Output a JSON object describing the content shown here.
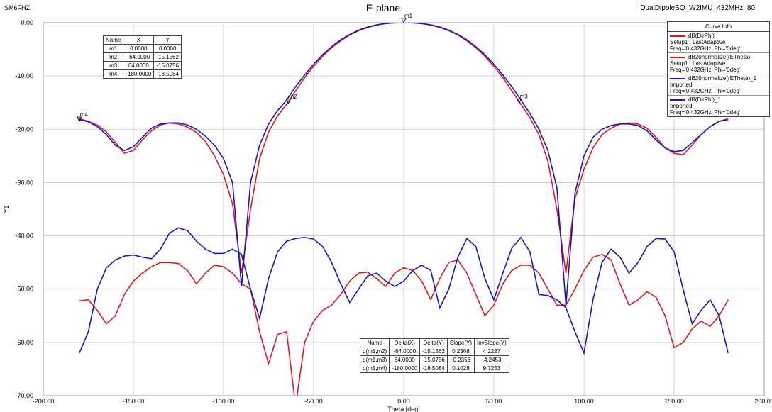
{
  "chart_data": {
    "type": "line",
    "title": "E-plane",
    "top_left_text": "SM6FHZ",
    "top_right_text": "DualDipoleSQ_W2IMU_432MHz_80",
    "x_label": "Theta [deg]",
    "y_label": "Y1",
    "xlim": [
      -200,
      200
    ],
    "ylim": [
      -70,
      0
    ],
    "xticks": [
      {
        "value": -200,
        "label": "-200.00"
      },
      {
        "value": -150,
        "label": "-150.00"
      },
      {
        "value": -100,
        "label": "-100.00"
      },
      {
        "value": -50,
        "label": "-50.00"
      },
      {
        "value": 0,
        "label": "0.00"
      },
      {
        "value": 50,
        "label": "50.00"
      },
      {
        "value": 100,
        "label": "100.00"
      },
      {
        "value": 150,
        "label": "150.00"
      },
      {
        "value": 200,
        "label": "200.00"
      }
    ],
    "yticks": [
      {
        "value": 0,
        "label": "0.00"
      },
      {
        "value": -10,
        "label": "-10.00"
      },
      {
        "value": -20,
        "label": "-20.00"
      },
      {
        "value": -30,
        "label": "-30.00"
      },
      {
        "value": -40,
        "label": "-40.00"
      },
      {
        "value": -50,
        "label": "-50.00"
      },
      {
        "value": -60,
        "label": "-60.00"
      },
      {
        "value": -70,
        "label": "-70.00"
      }
    ],
    "grid": true,
    "legend_title": "Curve Info",
    "legend_position": "top-right",
    "x": [
      -180,
      -175,
      -170,
      -165,
      -160,
      -155,
      -150,
      -145,
      -140,
      -135,
      -130,
      -125,
      -120,
      -115,
      -110,
      -105,
      -100,
      -95,
      -90,
      -85,
      -80,
      -75,
      -70,
      -65,
      -60,
      -55,
      -50,
      -45,
      -40,
      -35,
      -30,
      -25,
      -20,
      -15,
      -10,
      -5,
      0,
      5,
      10,
      15,
      20,
      25,
      30,
      35,
      40,
      45,
      50,
      55,
      60,
      65,
      70,
      75,
      80,
      85,
      90,
      95,
      100,
      105,
      110,
      115,
      120,
      125,
      130,
      135,
      140,
      145,
      150,
      155,
      160,
      165,
      170,
      175,
      180
    ],
    "series": [
      {
        "name": "dB(DirPhi)",
        "color": "#e8151b",
        "info": [
          "Setup1 : LastAdaptive",
          "Freq='0.432GHz' Phi='0deg'"
        ],
        "values": [
          -52.2,
          -52,
          -54,
          -56.5,
          -55,
          -51,
          -48.5,
          -47,
          -45.8,
          -45,
          -45,
          -45.2,
          -46.5,
          -49,
          -47,
          -45.5,
          -45.8,
          -47,
          -49,
          -50,
          -58,
          -64,
          -58.5,
          -58,
          -72,
          -60,
          -56,
          -54,
          -53,
          -51,
          -48.5,
          -47,
          -46.8,
          -48,
          -49.5,
          -47,
          -46,
          -46.5,
          -48.5,
          -52,
          -48,
          -45,
          -44.5,
          -47,
          -51,
          -55,
          -53,
          -49,
          -46.5,
          -45.5,
          -45.5,
          -47,
          -50,
          -53,
          -53,
          -50,
          -46.5,
          -44,
          -43.5,
          -44.5,
          -49,
          -53,
          -52,
          -50.5,
          -51.5,
          -55,
          -61,
          -60,
          -57.5,
          -56,
          -57,
          -55,
          -52
        ]
      },
      {
        "name": "dB20normalize(rETheta)",
        "color": "#e8151b",
        "info": [
          "Setup1 : LastAdaptive",
          "Freq='0.432GHz' Phi='0deg'"
        ],
        "values": [
          -18,
          -18.5,
          -19.2,
          -20.5,
          -22.5,
          -24.5,
          -24,
          -22,
          -20.3,
          -19.2,
          -18.8,
          -19,
          -19.6,
          -20.6,
          -22.3,
          -25,
          -28.5,
          -34,
          -47,
          -35,
          -25.5,
          -20.5,
          -17.5,
          -15.3,
          -12.8,
          -10.3,
          -8.2,
          -6.3,
          -4.7,
          -3.4,
          -2.3,
          -1.5,
          -0.9,
          -0.45,
          -0.18,
          -0.04,
          0,
          -0.04,
          -0.18,
          -0.45,
          -0.9,
          -1.5,
          -2.3,
          -3.4,
          -4.7,
          -6.3,
          -8.2,
          -10.3,
          -12.8,
          -15.3,
          -17.8,
          -21,
          -26,
          -35,
          -47,
          -33,
          -27.5,
          -23.5,
          -21,
          -19.8,
          -19,
          -18.8,
          -19,
          -19.8,
          -21.5,
          -23.5,
          -24.5,
          -24.8,
          -23,
          -21,
          -19.5,
          -18.5,
          -18
        ]
      },
      {
        "name": "dB20normalize(rETheta)_1",
        "color": "#1515d0",
        "info": [
          "Imported",
          "Freq='0.432GHz' Phi='0deg'"
        ],
        "values": [
          -18.2,
          -18.6,
          -19.5,
          -21,
          -23,
          -24,
          -23.3,
          -21.5,
          -19.8,
          -19,
          -18.8,
          -18.8,
          -19.2,
          -20,
          -21.3,
          -23,
          -25.5,
          -30,
          -49.5,
          -30,
          -23,
          -19,
          -16.5,
          -14.5,
          -12,
          -9.8,
          -7.8,
          -6,
          -4.5,
          -3.2,
          -2.2,
          -1.4,
          -0.8,
          -0.4,
          -0.15,
          -0.03,
          0,
          -0.03,
          -0.15,
          -0.4,
          -0.8,
          -1.4,
          -2.2,
          -3.2,
          -4.5,
          -6,
          -7.8,
          -9.8,
          -12,
          -14.5,
          -17,
          -20,
          -24,
          -31,
          -53,
          -32,
          -25,
          -21.5,
          -20,
          -19.3,
          -19,
          -19,
          -19.3,
          -20.3,
          -22,
          -23.5,
          -24.2,
          -24,
          -22.5,
          -21,
          -19.5,
          -18.5,
          -18.2
        ]
      },
      {
        "name": "dB(DirPhi)_1",
        "color": "#1515d0",
        "info": [
          "Imported",
          "Freq='0.432GHz' Phi='0deg'"
        ],
        "values": [
          -62,
          -58,
          -50,
          -46,
          -44.5,
          -43.8,
          -43.6,
          -44,
          -44.3,
          -42.5,
          -39.5,
          -38.5,
          -39,
          -41,
          -42.5,
          -43.3,
          -43.3,
          -42.5,
          -43.5,
          -50,
          -55.5,
          -48,
          -43,
          -41,
          -40.5,
          -40.3,
          -40.6,
          -42,
          -45,
          -49,
          -52.5,
          -50,
          -47.5,
          -47,
          -48.5,
          -49.5,
          -48.5,
          -46.5,
          -45.5,
          -46.5,
          -53.5,
          -50,
          -44,
          -40.5,
          -42,
          -48,
          -52,
          -47,
          -42.3,
          -40.3,
          -43,
          -51,
          -51.2,
          -52,
          -53.5,
          -58,
          -62,
          -52,
          -45,
          -42.5,
          -44,
          -47,
          -45,
          -42,
          -40.5,
          -40.6,
          -43,
          -50,
          -56.5,
          -54,
          -52,
          -55,
          -62
        ]
      }
    ],
    "markers": [
      {
        "name": "m1",
        "x": 0,
        "y": 0
      },
      {
        "name": "m2",
        "x": -64,
        "y": -15.1562
      },
      {
        "name": "m3",
        "x": 64,
        "y": -15.0756
      },
      {
        "name": "m4",
        "x": -180,
        "y": -18.5084
      }
    ],
    "marker_table": {
      "header": [
        "Name",
        "X",
        "Y"
      ],
      "rows": [
        [
          "m1",
          "0.0000",
          "0.0000"
        ],
        [
          "m2",
          "-64.0000",
          "-15.1562"
        ],
        [
          "m3",
          "64.0000",
          "-15.0756"
        ],
        [
          "m4",
          "-180.0000",
          "-18.5084"
        ]
      ]
    },
    "delta_table": {
      "header": [
        "Name",
        "Delta(X)",
        "Delta(Y)",
        "Slope(Y)",
        "InvSlope(Y)"
      ],
      "rows": [
        [
          "d(m1,m2)",
          "-64.0000",
          "-15.1562",
          "0.2368",
          "4.2227"
        ],
        [
          "d(m1,m3)",
          "64.0000",
          "-15.0756",
          "-0.2356",
          "-4.2453"
        ],
        [
          "d(m1,m4)",
          "-180.0000",
          "-18.5084",
          "0.1028",
          "9.7253"
        ]
      ]
    }
  }
}
